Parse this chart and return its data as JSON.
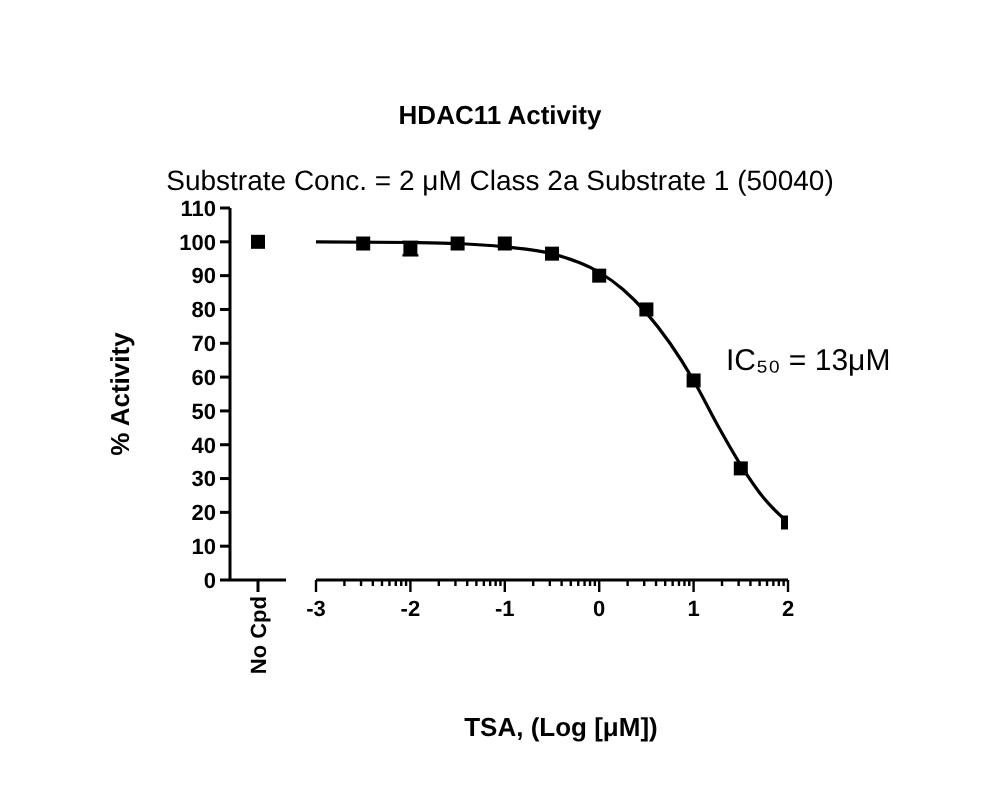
{
  "chart_data": [
    {
      "type": "scatter",
      "ylabel": "% Activity",
      "categories": [
        "No Cpd"
      ],
      "values": [
        100
      ],
      "color": "#000000",
      "marker": "square",
      "ylim": [
        0,
        110
      ],
      "yticks": [
        0,
        10,
        20,
        30,
        40,
        50,
        60,
        70,
        80,
        90,
        100,
        110
      ]
    },
    {
      "type": "scatter",
      "title": "HDAC11 Activity",
      "subtitle": "Substrate Conc. = 2 μM Class 2a Substrate 1 (50040)",
      "xlabel": "TSA, (Log [μM])",
      "annotations": [
        "IC₅₀ = 13μM"
      ],
      "tick_labels": "x",
      "xlim": [
        -3,
        2
      ],
      "ylim": [
        0,
        110
      ],
      "xticks": [
        -3,
        {
          "value": -2.699,
          "label": null
        },
        {
          "value": -2.523,
          "label": null
        },
        {
          "value": -2.398,
          "label": null
        },
        {
          "value": -2.301,
          "label": null
        },
        {
          "value": -2.222,
          "label": null
        },
        {
          "value": -2.155,
          "label": null
        },
        {
          "value": -2.097,
          "label": null
        },
        {
          "value": -2.046,
          "label": null
        },
        -2,
        {
          "value": -1.699,
          "label": null
        },
        {
          "value": -1.523,
          "label": null
        },
        {
          "value": -1.398,
          "label": null
        },
        {
          "value": -1.301,
          "label": null
        },
        {
          "value": -1.222,
          "label": null
        },
        {
          "value": -1.155,
          "label": null
        },
        {
          "value": -1.097,
          "label": null
        },
        {
          "value": -1.046,
          "label": null
        },
        -1,
        {
          "value": -0.699,
          "label": null
        },
        {
          "value": -0.523,
          "label": null
        },
        {
          "value": -0.398,
          "label": null
        },
        {
          "value": -0.301,
          "label": null
        },
        {
          "value": -0.222,
          "label": null
        },
        {
          "value": -0.155,
          "label": null
        },
        {
          "value": -0.097,
          "label": null
        },
        {
          "value": -0.046,
          "label": null
        },
        0,
        {
          "value": 0.301,
          "label": null
        },
        {
          "value": 0.477,
          "label": null
        },
        {
          "value": 0.602,
          "label": null
        },
        {
          "value": 0.699,
          "label": null
        },
        {
          "value": 0.778,
          "label": null
        },
        {
          "value": 0.845,
          "label": null
        },
        {
          "value": 0.903,
          "label": null
        },
        {
          "value": 0.954,
          "label": null
        },
        1,
        {
          "value": 1.301,
          "label": null
        },
        {
          "value": 1.477,
          "label": null
        },
        {
          "value": 1.602,
          "label": null
        },
        {
          "value": 1.699,
          "label": null
        },
        {
          "value": 1.778,
          "label": null
        },
        {
          "value": 1.845,
          "label": null
        },
        {
          "value": 1.903,
          "label": null
        },
        {
          "value": 1.954,
          "label": null
        },
        2
      ],
      "series": [
        {
          "type": "scatter",
          "color": "#000000",
          "marker": "square",
          "x": [
            -2.5,
            -2,
            -1.5,
            -1,
            -0.5,
            0,
            0.5,
            1,
            1.5,
            2
          ],
          "values": [
            99.5,
            98,
            99.5,
            99.5,
            96.5,
            90,
            80,
            59,
            33,
            17
          ],
          "errors": [
            null,
            2,
            null,
            null,
            null,
            null,
            null,
            null,
            null,
            null
          ]
        },
        {
          "type": "line",
          "marker": "none",
          "color": "#000000",
          "x": [
            -3,
            -2,
            -1.5,
            -1,
            -0.5,
            0,
            0.25,
            0.5,
            0.75,
            1,
            1.25,
            1.5,
            1.75,
            2
          ],
          "values": [
            100,
            99.8,
            99.5,
            98.5,
            96.5,
            91,
            86,
            79,
            70,
            59,
            46,
            34,
            24,
            17
          ]
        }
      ]
    }
  ]
}
